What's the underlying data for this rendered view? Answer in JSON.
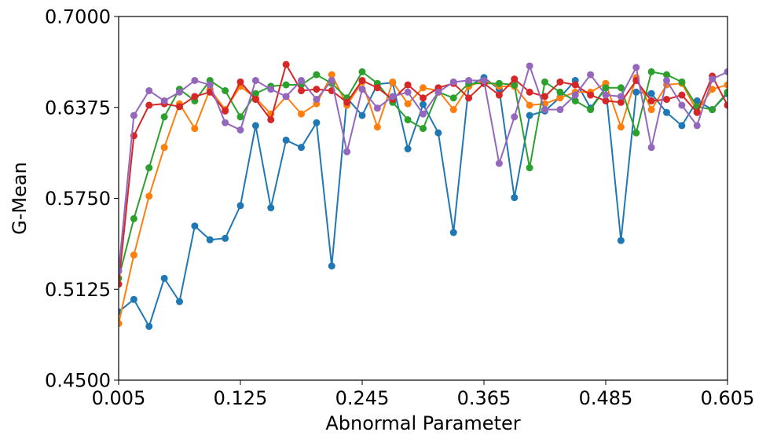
{
  "chart_data": {
    "type": "line",
    "xlabel": "Abnormal Parameter",
    "ylabel": "G-Mean",
    "xlim": [
      0.005,
      0.605
    ],
    "ylim": [
      0.45,
      0.7
    ],
    "xticks": [
      0.005,
      0.125,
      0.245,
      0.365,
      0.485,
      0.605
    ],
    "xtick_labels": [
      "0.005",
      "0.125",
      "0.245",
      "0.365",
      "0.485",
      "0.605"
    ],
    "yticks": [
      0.45,
      0.5125,
      0.575,
      0.6375,
      0.7
    ],
    "ytick_labels": [
      "0.4500",
      "0.5125",
      "0.5750",
      "0.6375",
      "0.7000"
    ],
    "grid": false,
    "legend": "none",
    "x": [
      0.005,
      0.02,
      0.035,
      0.05,
      0.065,
      0.08,
      0.095,
      0.11,
      0.125,
      0.14,
      0.155,
      0.17,
      0.185,
      0.2,
      0.215,
      0.23,
      0.245,
      0.26,
      0.275,
      0.29,
      0.305,
      0.32,
      0.335,
      0.35,
      0.365,
      0.38,
      0.395,
      0.41,
      0.425,
      0.44,
      0.455,
      0.47,
      0.485,
      0.5,
      0.515,
      0.53,
      0.545,
      0.56,
      0.575,
      0.59,
      0.605
    ],
    "series": [
      {
        "color": "#1f77b4",
        "values": [
          0.497,
          0.5055,
          0.487,
          0.52,
          0.504,
          0.556,
          0.5465,
          0.5475,
          0.57,
          0.625,
          0.5685,
          0.615,
          0.61,
          0.627,
          0.5285,
          0.644,
          0.632,
          0.6535,
          0.6545,
          0.609,
          0.6395,
          0.62,
          0.5515,
          0.652,
          0.658,
          0.65,
          0.5755,
          0.632,
          0.635,
          0.6445,
          0.656,
          0.637,
          0.651,
          0.546,
          0.648,
          0.647,
          0.634,
          0.625,
          0.642,
          0.636,
          0.647
        ]
      },
      {
        "color": "#ff7f0e",
        "values": [
          0.489,
          0.536,
          0.5765,
          0.61,
          0.64,
          0.623,
          0.65,
          0.636,
          0.652,
          0.644,
          0.633,
          0.645,
          0.633,
          0.64,
          0.66,
          0.639,
          0.655,
          0.624,
          0.655,
          0.64,
          0.651,
          0.649,
          0.636,
          0.652,
          0.656,
          0.652,
          0.652,
          0.639,
          0.64,
          0.644,
          0.648,
          0.648,
          0.654,
          0.624,
          0.658,
          0.636,
          0.653,
          0.654,
          0.635,
          0.65,
          0.653
        ]
      },
      {
        "color": "#2ca02c",
        "values": [
          0.52,
          0.561,
          0.596,
          0.631,
          0.65,
          0.642,
          0.656,
          0.649,
          0.631,
          0.647,
          0.652,
          0.653,
          0.653,
          0.66,
          0.654,
          0.644,
          0.662,
          0.654,
          0.641,
          0.629,
          0.623,
          0.648,
          0.644,
          0.654,
          0.654,
          0.654,
          0.653,
          0.596,
          0.655,
          0.648,
          0.642,
          0.636,
          0.651,
          0.651,
          0.62,
          0.662,
          0.66,
          0.655,
          0.638,
          0.636,
          0.648
        ]
      },
      {
        "color": "#d62728",
        "values": [
          0.516,
          0.618,
          0.639,
          0.64,
          0.638,
          0.645,
          0.648,
          0.635,
          0.655,
          0.643,
          0.629,
          0.667,
          0.649,
          0.65,
          0.649,
          0.641,
          0.656,
          0.651,
          0.643,
          0.653,
          0.644,
          0.651,
          0.654,
          0.644,
          0.654,
          0.646,
          0.657,
          0.648,
          0.645,
          0.655,
          0.653,
          0.646,
          0.642,
          0.641,
          0.656,
          0.642,
          0.643,
          0.646,
          0.634,
          0.659,
          0.639
        ]
      },
      {
        "color": "#9467bd",
        "values": [
          0.525,
          0.632,
          0.649,
          0.642,
          0.648,
          0.656,
          0.653,
          0.627,
          0.622,
          0.656,
          0.65,
          0.645,
          0.656,
          0.643,
          0.656,
          0.607,
          0.65,
          0.637,
          0.645,
          0.648,
          0.633,
          0.648,
          0.655,
          0.656,
          0.656,
          0.599,
          0.631,
          0.666,
          0.636,
          0.636,
          0.646,
          0.66,
          0.646,
          0.645,
          0.665,
          0.61,
          0.656,
          0.639,
          0.625,
          0.657,
          0.662
        ]
      }
    ]
  }
}
